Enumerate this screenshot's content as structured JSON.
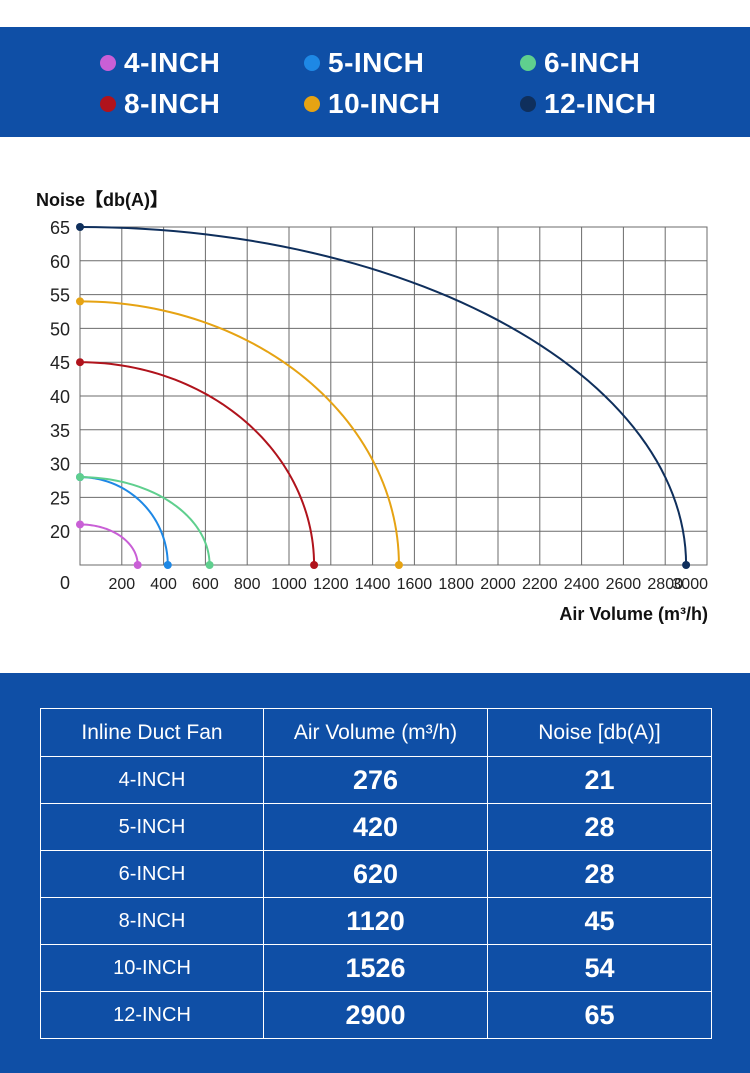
{
  "legend": [
    {
      "label": "4-INCH",
      "color": "#c95fd6"
    },
    {
      "label": "5-INCH",
      "color": "#1e88e5"
    },
    {
      "label": "6-INCH",
      "color": "#5fcf8e"
    },
    {
      "label": "8-INCH",
      "color": "#b0131c"
    },
    {
      "label": "10-INCH",
      "color": "#e6a313"
    },
    {
      "label": "12-INCH",
      "color": "#0f2f5c"
    }
  ],
  "chart_data": {
    "type": "line",
    "ylabel": "Noise【db(A)】",
    "xlabel": "Air Volume (m³/h)",
    "xlim": [
      0,
      3000
    ],
    "ylim": [
      15,
      65
    ],
    "x_ticks": [
      "0",
      "200",
      "400",
      "600",
      "800",
      "1000",
      "1200",
      "1400",
      "1600",
      "1800",
      "2000",
      "2200",
      "2400",
      "2600",
      "2800",
      "3000"
    ],
    "y_ticks": [
      "20",
      "25",
      "30",
      "35",
      "40",
      "45",
      "50",
      "55",
      "60",
      "65"
    ],
    "grid": true,
    "series": [
      {
        "name": "4-INCH",
        "color": "#c95fd6",
        "points": [
          [
            0,
            21
          ],
          [
            276,
            15
          ]
        ]
      },
      {
        "name": "5-INCH",
        "color": "#1e88e5",
        "points": [
          [
            0,
            28
          ],
          [
            420,
            15
          ]
        ]
      },
      {
        "name": "6-INCH",
        "color": "#5fcf8e",
        "points": [
          [
            0,
            28
          ],
          [
            620,
            15
          ]
        ]
      },
      {
        "name": "8-INCH",
        "color": "#b0131c",
        "points": [
          [
            0,
            45
          ],
          [
            1120,
            15
          ]
        ]
      },
      {
        "name": "10-INCH",
        "color": "#e6a313",
        "points": [
          [
            0,
            54
          ],
          [
            1526,
            15
          ]
        ]
      },
      {
        "name": "12-INCH",
        "color": "#0f2f5c",
        "points": [
          [
            0,
            65
          ],
          [
            2900,
            15
          ]
        ]
      }
    ]
  },
  "table": {
    "headers": [
      "Inline Duct Fan",
      "Air Volume (m³/h)",
      "Noise [db(A)]"
    ],
    "rows": [
      [
        "4-INCH",
        "276",
        "21"
      ],
      [
        "5-INCH",
        "420",
        "28"
      ],
      [
        "6-INCH",
        "620",
        "28"
      ],
      [
        "8-INCH",
        "1120",
        "45"
      ],
      [
        "10-INCH",
        "1526",
        "54"
      ],
      [
        "12-INCH",
        "2900",
        "65"
      ]
    ]
  }
}
